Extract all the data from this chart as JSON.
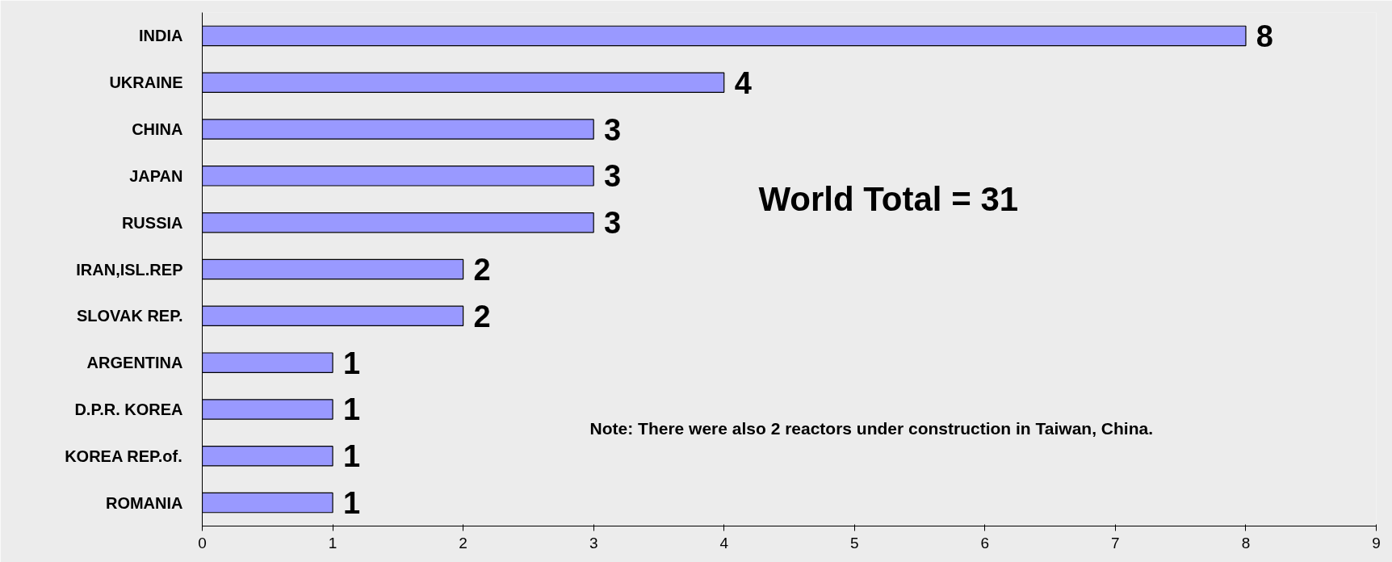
{
  "chart_data": {
    "type": "bar",
    "orientation": "horizontal",
    "categories": [
      "INDIA",
      "UKRAINE",
      "CHINA",
      "JAPAN",
      "RUSSIA",
      "IRAN,ISL.REP",
      "SLOVAK REP.",
      "ARGENTINA",
      "D.P.R. KOREA",
      "KOREA REP.of.",
      "ROMANIA"
    ],
    "values": [
      8,
      4,
      3,
      3,
      3,
      2,
      2,
      1,
      1,
      1,
      1
    ],
    "color": "#9999ff",
    "xlim": [
      0,
      9
    ],
    "xticks": [
      0,
      1,
      2,
      3,
      4,
      5,
      6,
      7,
      8,
      9
    ],
    "data_labels": true,
    "grid": false,
    "annotations": [
      "World Total = 31",
      "Note: There were also 2 reactors under construction in Taiwan, China."
    ]
  }
}
